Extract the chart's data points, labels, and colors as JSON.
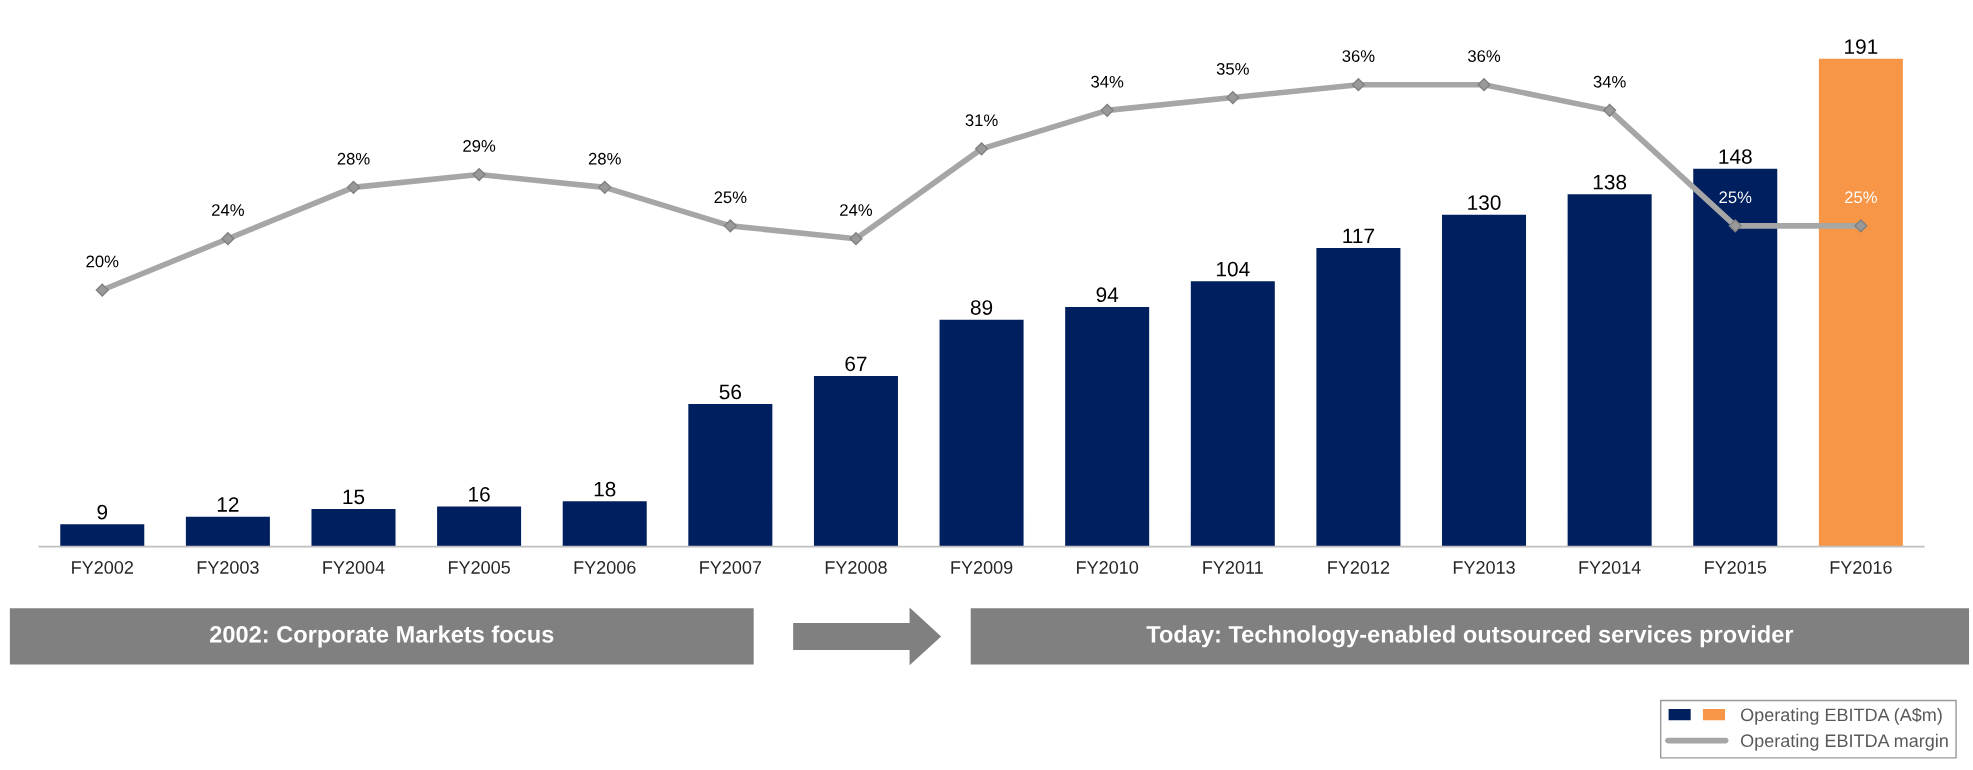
{
  "chart_data": {
    "type": "bar",
    "categories": [
      "FY2002",
      "FY2003",
      "FY2004",
      "FY2005",
      "FY2006",
      "FY2007",
      "FY2008",
      "FY2009",
      "FY2010",
      "FY2011",
      "FY2012",
      "FY2013",
      "FY2014",
      "FY2015",
      "FY2016"
    ],
    "series": [
      {
        "name": "Operating EBITDA (A$m)",
        "colors": [
          "#001f5f",
          "#001f5f",
          "#001f5f",
          "#001f5f",
          "#001f5f",
          "#001f5f",
          "#001f5f",
          "#001f5f",
          "#001f5f",
          "#001f5f",
          "#001f5f",
          "#001f5f",
          "#001f5f",
          "#001f5f",
          "#f79646"
        ],
        "values": [
          9,
          12,
          15,
          16,
          18,
          56,
          67,
          89,
          94,
          104,
          117,
          130,
          138,
          148,
          191
        ]
      },
      {
        "name": "Operating EBITDA margin",
        "type": "line",
        "axis": "y2",
        "color": "#a6a6a6",
        "marker": "diamond",
        "values": [
          20,
          24,
          28,
          29,
          28,
          25,
          24,
          31,
          34,
          35,
          36,
          36,
          34,
          25,
          25
        ],
        "value_labels": [
          "20%",
          "24%",
          "28%",
          "29%",
          "28%",
          "25%",
          "24%",
          "31%",
          "34%",
          "35%",
          "36%",
          "36%",
          "34%",
          "25%",
          "25%"
        ]
      }
    ],
    "data_labels": true,
    "tick_labels": "x",
    "grid": false,
    "legend": "bottom right",
    "annotations": [
      "2002: Corporate Markets focus",
      "Today: Technology-enabled outsourced services provider"
    ]
  }
}
